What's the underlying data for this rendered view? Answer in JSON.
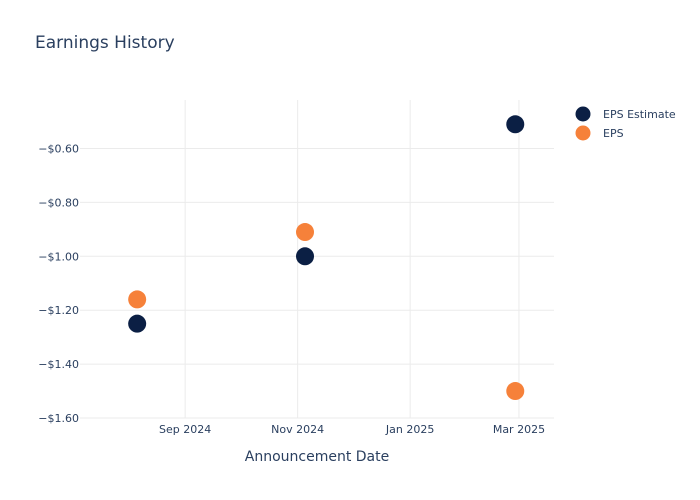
{
  "title": "Earnings History",
  "chart_data": {
    "type": "scatter",
    "title": "Earnings History",
    "xlabel": "Announcement Date",
    "ylabel": "",
    "x_ticks": [
      {
        "date": "2024-09-01",
        "label": "Sep 2024"
      },
      {
        "date": "2024-11-01",
        "label": "Nov 2024"
      },
      {
        "date": "2025-01-01",
        "label": "Jan 2025"
      },
      {
        "date": "2025-03-01",
        "label": "Mar 2025"
      }
    ],
    "xlim": [
      "2024-07-06",
      "2025-03-20"
    ],
    "y_ticks": [
      {
        "value": -0.6,
        "label": "−$0.60"
      },
      {
        "value": -0.8,
        "label": "−$0.80"
      },
      {
        "value": -1.0,
        "label": "−$1.00"
      },
      {
        "value": -1.2,
        "label": "−$1.20"
      },
      {
        "value": -1.4,
        "label": "−$1.40"
      },
      {
        "value": -1.6,
        "label": "−$1.60"
      }
    ],
    "ylim": [
      -1.6,
      -0.42
    ],
    "grid": true,
    "legend_position": "top-right",
    "series": [
      {
        "name": "EPS Estimate",
        "color": "#0b1f44",
        "points": [
          {
            "x": "2024-08-06",
            "y": -1.25
          },
          {
            "x": "2024-11-05",
            "y": -1.0
          },
          {
            "x": "2025-02-27",
            "y": -0.51
          }
        ]
      },
      {
        "name": "EPS",
        "color": "#f6813a",
        "points": [
          {
            "x": "2024-08-06",
            "y": -1.16
          },
          {
            "x": "2024-11-05",
            "y": -0.91
          },
          {
            "x": "2025-02-27",
            "y": -1.5
          }
        ]
      }
    ]
  }
}
